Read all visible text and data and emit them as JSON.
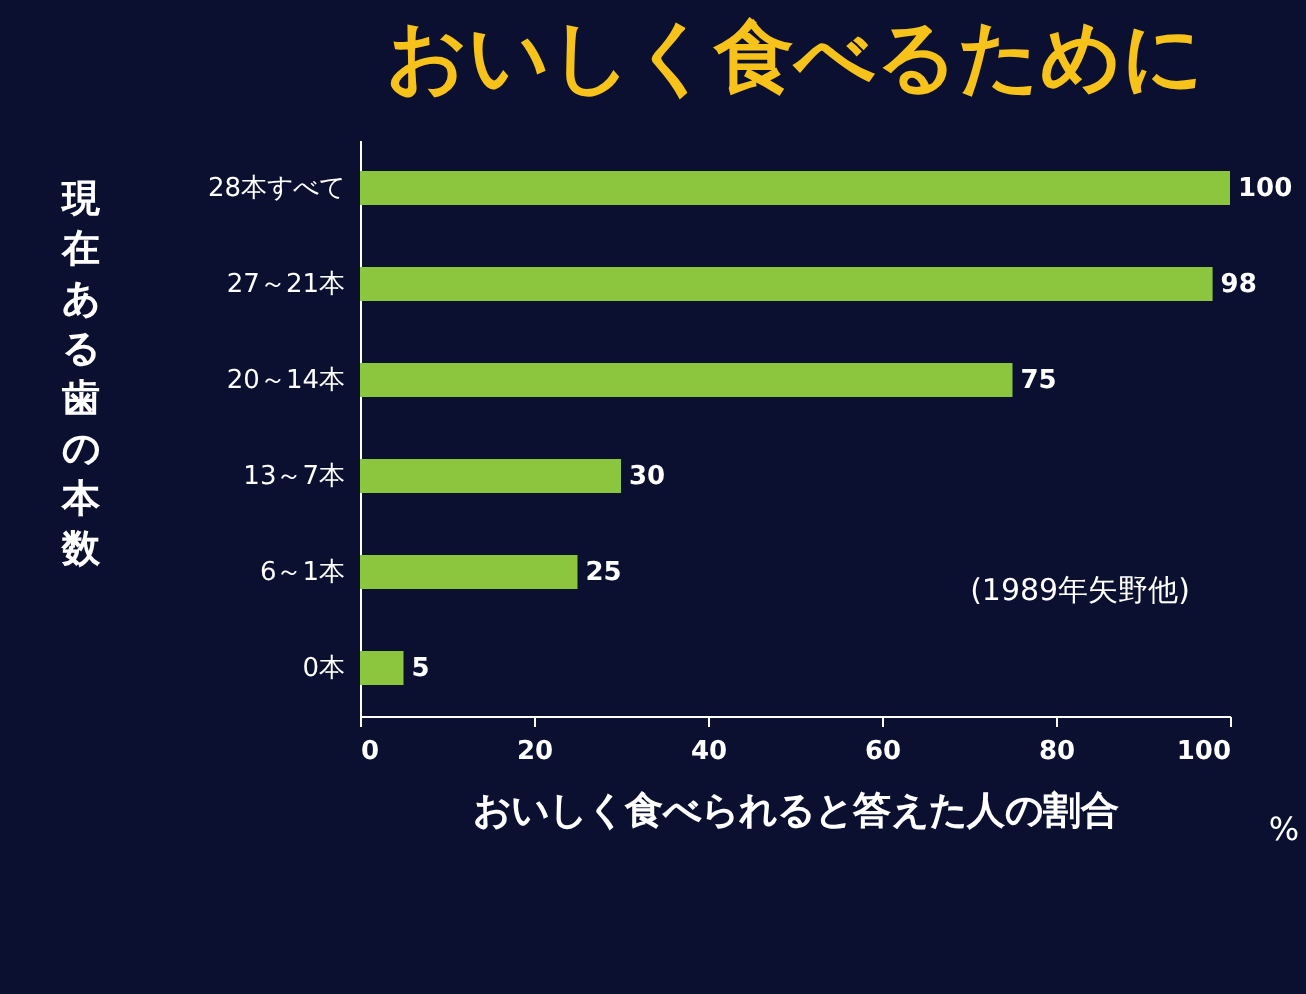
{
  "chart_data": {
    "type": "bar",
    "orientation": "horizontal",
    "title": "おいしく食べるために",
    "xlabel": "おいしく食べられると答えた人の割合",
    "ylabel": "現在ある歯の本数",
    "categories": [
      "28本すべて",
      "27～21本",
      "20～14本",
      "13～7本",
      "6～1本",
      "0本"
    ],
    "values": [
      100,
      98,
      75,
      30,
      25,
      5
    ],
    "color": "#8cc63e",
    "data_labels": true,
    "xlim": [
      0,
      100
    ],
    "xticks": [
      0,
      20,
      40,
      60,
      80,
      100
    ],
    "grid": false,
    "annotations": [
      "(1989年矢野他)",
      "%"
    ]
  }
}
